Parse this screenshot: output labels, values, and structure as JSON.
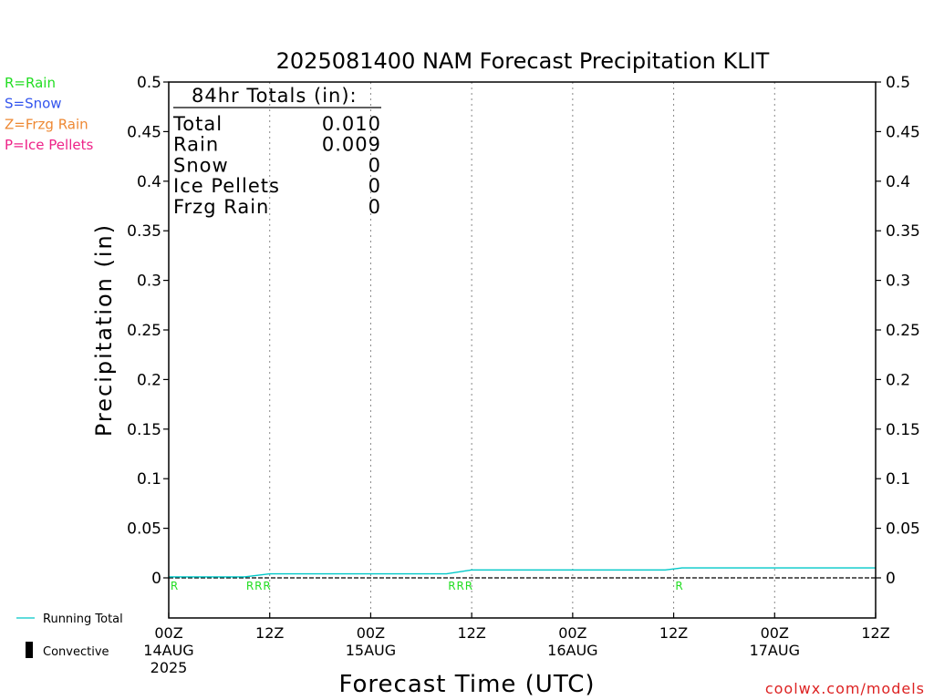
{
  "chart_data": {
    "type": "line",
    "title": "2025081400 NAM Forecast Precipitation KLIT",
    "xlabel": "Forecast Time (UTC)",
    "ylabel": "Precipitation (in)",
    "ylim": [
      0,
      0.5
    ],
    "yticks": [
      "0",
      "0.05",
      "0.1",
      "0.15",
      "0.2",
      "0.25",
      "0.3",
      "0.35",
      "0.4",
      "0.45",
      "0.5"
    ],
    "xlim_hours": [
      0,
      84
    ],
    "xticks": [
      {
        "hour": 0,
        "l1": "00Z",
        "l2": "14AUG",
        "l3": "2025"
      },
      {
        "hour": 12,
        "l1": "12Z",
        "l2": "",
        "l3": ""
      },
      {
        "hour": 24,
        "l1": "00Z",
        "l2": "15AUG",
        "l3": ""
      },
      {
        "hour": 36,
        "l1": "12Z",
        "l2": "",
        "l3": ""
      },
      {
        "hour": 48,
        "l1": "00Z",
        "l2": "16AUG",
        "l3": ""
      },
      {
        "hour": 60,
        "l1": "12Z",
        "l2": "",
        "l3": ""
      },
      {
        "hour": 72,
        "l1": "00Z",
        "l2": "17AUG",
        "l3": ""
      },
      {
        "hour": 84,
        "l1": "12Z",
        "l2": "",
        "l3": ""
      }
    ],
    "grid": true,
    "series": [
      {
        "name": "Running Total",
        "color": "#00c8c8",
        "points": [
          [
            0,
            0.001
          ],
          [
            9,
            0.001
          ],
          [
            12,
            0.004
          ],
          [
            33,
            0.004
          ],
          [
            36,
            0.008
          ],
          [
            59,
            0.008
          ],
          [
            60,
            0.009
          ],
          [
            61,
            0.01
          ],
          [
            84,
            0.01
          ]
        ]
      }
    ],
    "ptype_markers": [
      {
        "hour": 0,
        "label": "R"
      },
      {
        "hour": 9,
        "label": "R"
      },
      {
        "hour": 10,
        "label": "R"
      },
      {
        "hour": 11,
        "label": "R"
      },
      {
        "hour": 33,
        "label": "R"
      },
      {
        "hour": 34,
        "label": "R"
      },
      {
        "hour": 35,
        "label": "R"
      },
      {
        "hour": 60,
        "label": "R"
      }
    ]
  },
  "totals": {
    "header": "84hr Totals (in):",
    "rows": [
      {
        "label": "Total",
        "value": "0.010"
      },
      {
        "label": "Rain",
        "value": "0.009"
      },
      {
        "label": "Snow",
        "value": "0"
      },
      {
        "label": "Ice Pellets",
        "value": "0"
      },
      {
        "label": "Frzg Rain",
        "value": "0"
      }
    ]
  },
  "ptype_legend": [
    {
      "text": "R=Rain",
      "color": "#22dd22"
    },
    {
      "text": "S=Snow",
      "color": "#3355ee"
    },
    {
      "text": "Z=Frzg Rain",
      "color": "#ee8833"
    },
    {
      "text": "P=Ice Pellets",
      "color": "#ee2288"
    }
  ],
  "bottom_legend": {
    "running_total": "Running Total",
    "convective": "Convective"
  },
  "credit": "coolwx.com/models",
  "colors": {
    "rain": "#22dd22",
    "line": "#00c8c8",
    "credit": "#dd2222"
  }
}
